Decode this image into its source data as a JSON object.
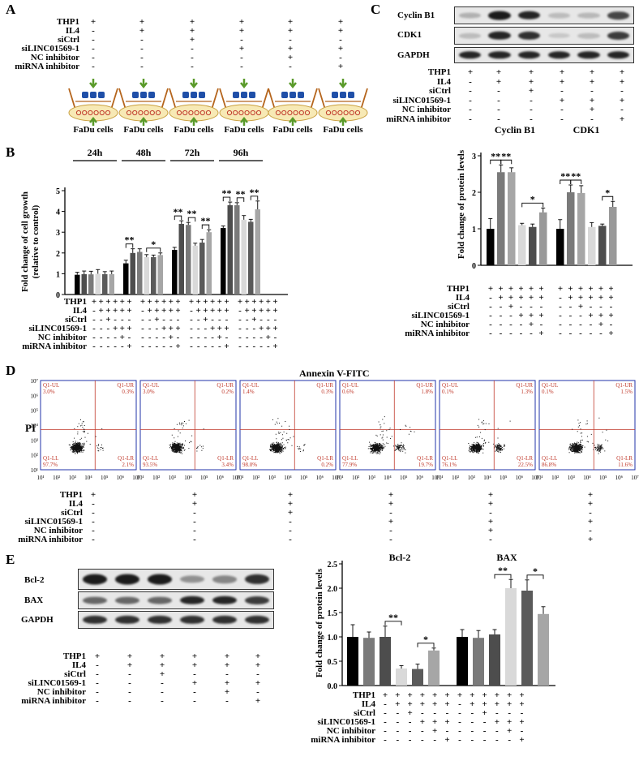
{
  "panels": {
    "A": "A",
    "B": "B",
    "C": "C",
    "D": "D",
    "E": "E"
  },
  "cond_labels": [
    "THP1",
    "IL4",
    "siCtrl",
    "siLINC01569-1",
    "NC inhibitor",
    "miRNA inhibitor"
  ],
  "panelA": {
    "cells_label": "FaDu cells",
    "signs": [
      [
        "+",
        "+",
        "+",
        "+",
        "+",
        "+"
      ],
      [
        "-",
        "+",
        "+",
        "+",
        "+",
        "+"
      ],
      [
        "-",
        "-",
        "+",
        "-",
        "-",
        "-"
      ],
      [
        "-",
        "-",
        "-",
        "+",
        "+",
        "+"
      ],
      [
        "-",
        "-",
        "-",
        "-",
        "+",
        "-"
      ],
      [
        "-",
        "-",
        "-",
        "-",
        "-",
        "+"
      ]
    ]
  },
  "panelB": {
    "timepoints": [
      "24h",
      "48h",
      "72h",
      "96h"
    ],
    "ylabel": "Fold change of cell growth\n(relative to control)",
    "yticks": [
      "0",
      "1",
      "2",
      "3",
      "4",
      "5"
    ],
    "sig": [
      "**",
      "*",
      "**",
      "**",
      "**",
      "**",
      "**",
      "**"
    ],
    "signs": [
      [
        "+",
        "+",
        "+",
        "+",
        "+",
        "+"
      ],
      [
        "-",
        "+",
        "+",
        "+",
        "+",
        "+"
      ],
      [
        "-",
        "-",
        "+",
        "-",
        "-",
        "-"
      ],
      [
        "-",
        "-",
        "-",
        "+",
        "+",
        "+"
      ],
      [
        "-",
        "-",
        "-",
        "-",
        "+",
        "-"
      ],
      [
        "-",
        "-",
        "-",
        "-",
        "-",
        "+"
      ]
    ]
  },
  "panelC": {
    "blot_labels": [
      "Cyclin B1",
      "CDK1",
      "GAPDH"
    ],
    "proteins": [
      "Cyclin B1",
      "CDK1"
    ],
    "ylabel": "Fold change of protein levels",
    "yticks": [
      "0",
      "1",
      "2",
      "3"
    ],
    "sig": [
      "**",
      "**",
      "*",
      "**",
      "**",
      "*"
    ],
    "signs": [
      [
        "+",
        "+",
        "+",
        "+",
        "+",
        "+"
      ],
      [
        "-",
        "+",
        "+",
        "+",
        "+",
        "+"
      ],
      [
        "-",
        "-",
        "+",
        "-",
        "-",
        "-"
      ],
      [
        "-",
        "-",
        "-",
        "+",
        "+",
        "+"
      ],
      [
        "-",
        "-",
        "-",
        "-",
        "+",
        "-"
      ],
      [
        "-",
        "-",
        "-",
        "-",
        "-",
        "+"
      ]
    ]
  },
  "panelD": {
    "title": "Annexin V-FITC",
    "ylabel": "PI",
    "quads": [
      {
        "ul": "Q1-UL\n3.0%",
        "ur": "Q1-UR\n0.3%",
        "ll": "Q1-LL\n97.7%",
        "lr": "Q1-LR\n2.1%"
      },
      {
        "ul": "Q1-UL\n3.0%",
        "ur": "Q1-UR\n0.2%",
        "ll": "Q1-LL\n93.5%",
        "lr": "Q1-LR\n3.4%"
      },
      {
        "ul": "Q1-UL\n1.4%",
        "ur": "Q1-UR\n0.3%",
        "ll": "Q1-LL\n98.0%",
        "lr": "Q1-LR\n0.2%"
      },
      {
        "ul": "Q1-UL\n0.6%",
        "ur": "Q1-UR\n1.8%",
        "ll": "Q1-LL\n77.9%",
        "lr": "Q1-LR\n19.7%"
      },
      {
        "ul": "Q1-UL\n0.1%",
        "ur": "Q1-UR\n1.3%",
        "ll": "Q1-LL\n76.1%",
        "lr": "Q1-LR\n22.5%"
      },
      {
        "ul": "Q1-UL\n0.1%",
        "ur": "Q1-UR\n1.5%",
        "ll": "Q1-LL\n86.8%",
        "lr": "Q1-LR\n11.6%"
      }
    ],
    "xticks": [
      "10¹",
      "10²",
      "10³",
      "10⁴",
      "10⁵",
      "10⁶",
      "10⁷"
    ],
    "yticks": [
      "10¹",
      "10²",
      "10³",
      "10⁴",
      "10⁵",
      "10⁶",
      "10⁷"
    ],
    "signs": [
      [
        "+",
        "+",
        "+",
        "+",
        "+",
        "+"
      ],
      [
        "-",
        "+",
        "+",
        "+",
        "+",
        "+"
      ],
      [
        "-",
        "-",
        "+",
        "-",
        "-",
        "-"
      ],
      [
        "-",
        "-",
        "-",
        "+",
        "+",
        "+"
      ],
      [
        "-",
        "-",
        "-",
        "-",
        "+",
        "-"
      ],
      [
        "-",
        "-",
        "-",
        "-",
        "-",
        "+"
      ]
    ]
  },
  "panelE": {
    "blot_labels": [
      "Bcl-2",
      "BAX",
      "GAPDH"
    ],
    "proteins": [
      "Bcl-2",
      "BAX"
    ],
    "ylabel": "Fold change of protein levels",
    "yticks": [
      "0.0",
      "0.5",
      "1.0",
      "1.5",
      "2.0",
      "2.5"
    ],
    "sig": [
      "**",
      "*",
      "**",
      "*"
    ],
    "signs": [
      [
        "+",
        "+",
        "+",
        "+",
        "+",
        "+"
      ],
      [
        "-",
        "+",
        "+",
        "+",
        "+",
        "+"
      ],
      [
        "-",
        "-",
        "+",
        "-",
        "-",
        "-"
      ],
      [
        "-",
        "-",
        "-",
        "+",
        "+",
        "+"
      ],
      [
        "-",
        "-",
        "-",
        "-",
        "+",
        "-"
      ],
      [
        "-",
        "-",
        "-",
        "-",
        "-",
        "+"
      ]
    ]
  },
  "chart_data": [
    {
      "type": "bar",
      "panel": "B",
      "categories": [
        "24h",
        "48h",
        "72h",
        "96h"
      ],
      "ylabel": "Fold change of cell growth (relative to control)",
      "ylim": [
        0,
        5
      ],
      "colors": [
        "#000000",
        "#4d4d4d",
        "#7a7a7a",
        "#d9d9d9",
        "#5a5a5a",
        "#a6a6a6"
      ],
      "series": [
        {
          "values": [
            0.95,
            1.5,
            2.15,
            3.2
          ]
        },
        {
          "values": [
            0.98,
            2.0,
            3.4,
            4.3
          ]
        },
        {
          "values": [
            0.97,
            2.05,
            3.35,
            4.3
          ]
        },
        {
          "values": [
            1.0,
            1.8,
            2.35,
            3.6
          ]
        },
        {
          "values": [
            0.98,
            1.8,
            2.5,
            3.5
          ]
        },
        {
          "values": [
            0.98,
            1.9,
            3.0,
            4.1
          ]
        }
      ],
      "errors": [
        [
          0.12,
          0.15,
          0.12,
          0.1
        ],
        [
          0.15,
          0.2,
          0.15,
          0.15
        ],
        [
          0.15,
          0.15,
          0.12,
          0.12
        ],
        [
          0.2,
          0.12,
          0.12,
          0.2
        ],
        [
          0.12,
          0.1,
          0.15,
          0.12
        ],
        [
          0.15,
          0.1,
          0.12,
          0.4
        ]
      ]
    },
    {
      "type": "bar",
      "panel": "C",
      "categories": [
        "Cyclin B1",
        "CDK1"
      ],
      "ylabel": "Fold change of protein levels",
      "ylim": [
        0,
        3
      ],
      "colors": [
        "#000000",
        "#7a7a7a",
        "#a6a6a6",
        "#d9d9d9",
        "#4d4d4d",
        "#999999"
      ],
      "series": [
        {
          "values": [
            1.0,
            1.0
          ]
        },
        {
          "values": [
            2.55,
            2.0
          ]
        },
        {
          "values": [
            2.55,
            1.98
          ]
        },
        {
          "values": [
            1.1,
            1.05
          ]
        },
        {
          "values": [
            1.05,
            1.08
          ]
        },
        {
          "values": [
            1.45,
            1.6
          ]
        }
      ],
      "errors": [
        [
          0.28,
          0.25
        ],
        [
          0.2,
          0.2
        ],
        [
          0.12,
          0.2
        ],
        [
          0.05,
          0.12
        ],
        [
          0.08,
          0.05
        ],
        [
          0.12,
          0.15
        ]
      ]
    },
    {
      "type": "bar",
      "panel": "E",
      "categories": [
        "Bcl-2",
        "BAX"
      ],
      "ylabel": "Fold change of protein levels",
      "ylim": [
        0,
        2.5
      ],
      "colors": [
        "#000000",
        "#7a7a7a",
        "#4d4d4d",
        "#d9d9d9",
        "#5a5a5a",
        "#a6a6a6"
      ],
      "series": [
        {
          "values": [
            1.0,
            1.0
          ]
        },
        {
          "values": [
            0.98,
            0.98
          ]
        },
        {
          "values": [
            1.0,
            1.05
          ]
        },
        {
          "values": [
            0.35,
            2.0
          ]
        },
        {
          "values": [
            0.34,
            1.95
          ]
        },
        {
          "values": [
            0.72,
            1.47
          ]
        }
      ],
      "errors": [
        [
          0.25,
          0.15
        ],
        [
          0.12,
          0.15
        ],
        [
          0.22,
          0.1
        ],
        [
          0.06,
          0.18
        ],
        [
          0.1,
          0.22
        ],
        [
          0.05,
          0.15
        ]
      ]
    }
  ]
}
